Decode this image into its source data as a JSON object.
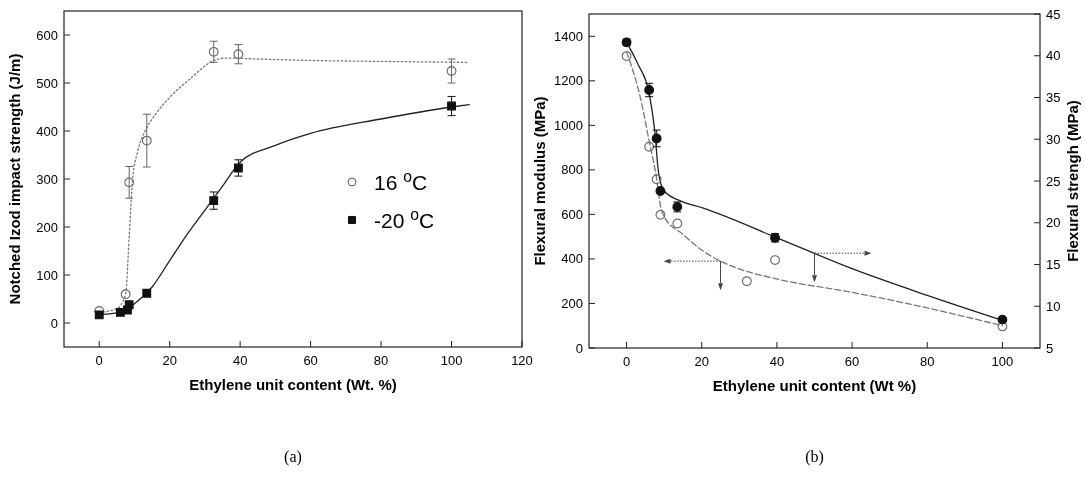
{
  "chart_data": [
    {
      "type": "scatter",
      "xlabel": "Ethylene unit content (Wt. %)",
      "ylabel": "Notched Izod impact strength (J/m)",
      "xlim": [
        -10,
        120
      ],
      "xticks": [
        0,
        20,
        40,
        60,
        80,
        100,
        120
      ],
      "ylim": [
        -50,
        650
      ],
      "yticks": [
        0,
        100,
        200,
        300,
        400,
        500,
        600
      ],
      "legend": "bottom right",
      "annotations": [
        "(a)"
      ],
      "series": [
        {
          "type": "line",
          "color": "#777777",
          "line_style": "dotted",
          "marker": "none",
          "x": [
            0,
            5,
            7.5,
            8.5,
            9.5,
            11,
            13,
            16,
            20,
            26,
            32,
            36,
            45,
            60,
            80,
            105
          ],
          "values": [
            22,
            30,
            60,
            180,
            300,
            360,
            400,
            435,
            470,
            510,
            545,
            552,
            550,
            547,
            545,
            543
          ]
        },
        {
          "type": "line",
          "color": "#222222",
          "line_style": "solid",
          "marker": "none",
          "x": [
            0,
            6,
            10,
            15,
            20,
            25,
            30,
            35,
            40,
            50,
            60,
            80,
            100,
            105
          ],
          "values": [
            17,
            23,
            40,
            75,
            130,
            185,
            235,
            285,
            335,
            370,
            395,
            425,
            450,
            455
          ]
        },
        {
          "name": "16 $^{o}$C",
          "color": "#666666",
          "marker": "circle",
          "x": [
            0,
            7.5,
            8.5,
            13.5,
            32.5,
            39.5,
            100
          ],
          "values": [
            25,
            60,
            293,
            380,
            565,
            560,
            525
          ],
          "errors": [
            null,
            null,
            33,
            55,
            22,
            20,
            25
          ]
        },
        {
          "name": "-20 $^{o}$C",
          "color": "#111111",
          "marker": "square",
          "x": [
            0,
            6,
            8,
            8.5,
            13.5,
            32.5,
            39.5,
            100
          ],
          "values": [
            17,
            22,
            27,
            38,
            62,
            255,
            323,
            452
          ],
          "errors": [
            null,
            null,
            null,
            null,
            null,
            18,
            17,
            20
          ]
        }
      ]
    },
    {
      "type": "scatter",
      "xlabel": "Ethylene unit content (Wt %)",
      "ylabel": "Flexural modulus (MPa)",
      "y2label": "Flexural strengh (MPa)",
      "xlim": [
        -10,
        110
      ],
      "xticks": [
        0,
        20,
        40,
        60,
        80,
        100
      ],
      "ylim": [
        0,
        1500
      ],
      "yticks": [
        0,
        200,
        400,
        600,
        800,
        1000,
        1200,
        1400
      ],
      "y2lim": [
        5,
        45
      ],
      "y2ticks": [
        5,
        10,
        15,
        20,
        25,
        30,
        35,
        40,
        45
      ],
      "legend": false,
      "annotations": [
        "(b)"
      ],
      "series": [
        {
          "type": "line",
          "color": "#777777",
          "line_style": "dashed",
          "marker": "none",
          "x": [
            0,
            4,
            6,
            8,
            9,
            10,
            15,
            20,
            25,
            30,
            40,
            60,
            80,
            100
          ],
          "values": [
            1330,
            1100,
            930,
            760,
            640,
            590,
            510,
            440,
            390,
            355,
            310,
            250,
            180,
            100
          ]
        },
        {
          "type": "line",
          "color": "#222222",
          "line_style": "solid",
          "marker": "none",
          "axis": "y2",
          "x": [
            0,
            3,
            6,
            7.5,
            8.5,
            10,
            15,
            20,
            40,
            60,
            80,
            100
          ],
          "values": [
            41.6,
            39,
            35.5,
            31,
            26,
            23.8,
            22.5,
            21.8,
            18.2,
            14.5,
            11.3,
            8.3
          ]
        },
        {
          "color": "#666666",
          "marker": "circle",
          "x": [
            0,
            6,
            8,
            9,
            13.5,
            32,
            39.5,
            100
          ],
          "values": [
            1311,
            904,
            758,
            598,
            559,
            300,
            395,
            97
          ]
        },
        {
          "color": "#111111",
          "marker": "circle",
          "axis": "y2",
          "x": [
            0,
            6,
            8,
            9,
            13.5,
            39.5,
            100
          ],
          "values": [
            41.6,
            35.9,
            30.1,
            23.8,
            21.9,
            18.2,
            8.4
          ],
          "errors": [
            0.4,
            0.8,
            1,
            null,
            0.6,
            0.5,
            null
          ]
        }
      ]
    }
  ]
}
